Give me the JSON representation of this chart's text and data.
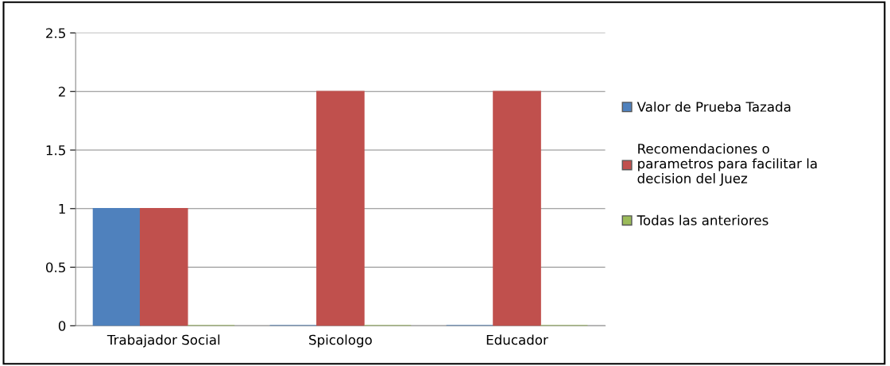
{
  "chart_data": {
    "type": "bar",
    "categories": [
      "Trabajador Social",
      "Spicologo",
      "Educador"
    ],
    "series": [
      {
        "name": "Valor de Prueba Tazada",
        "color": "#4f81bd",
        "values": [
          1,
          0,
          0
        ]
      },
      {
        "name": "Recomendaciones o\nparametros para facilitar la\ndecision del Juez",
        "color": "#c0504d",
        "values": [
          1,
          2,
          2
        ]
      },
      {
        "name": "Todas las anteriores",
        "color": "#9bbb59",
        "values": [
          0,
          0,
          0
        ]
      }
    ],
    "ylim": [
      0,
      2.5
    ],
    "yticks": [
      0,
      0.5,
      1,
      1.5,
      2,
      2.5
    ],
    "grid": "y",
    "legend": "right"
  }
}
